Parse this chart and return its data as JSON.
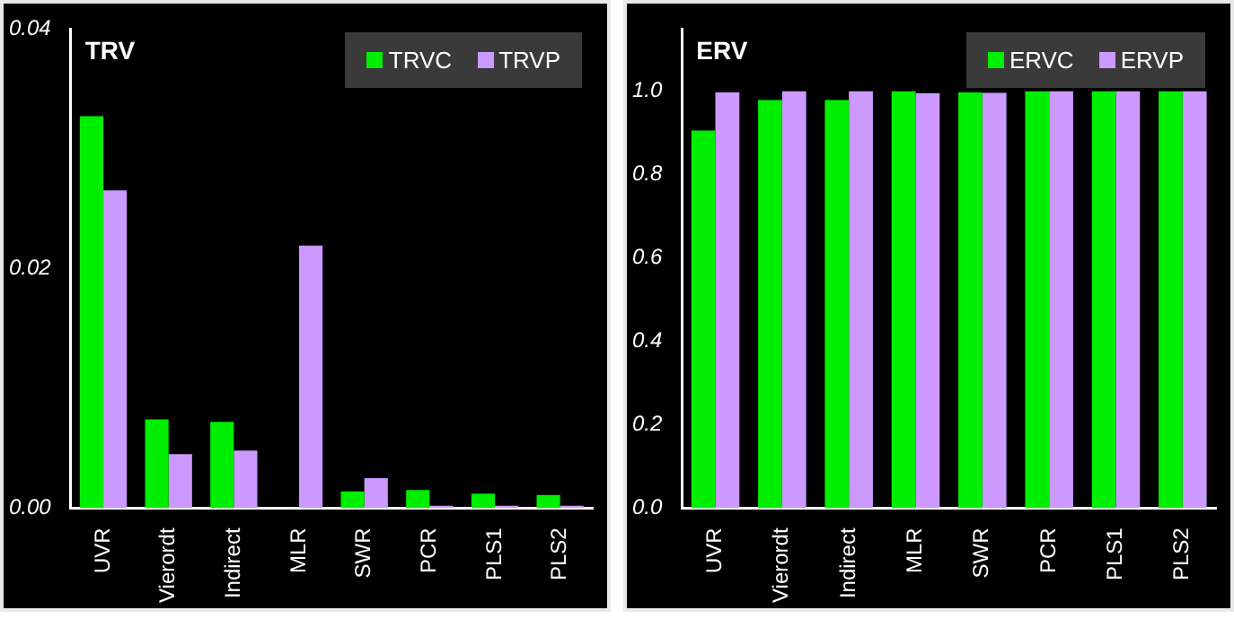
{
  "chart_data": [
    {
      "type": "bar",
      "title": "TRV",
      "categories": [
        "UVR",
        "Vierordt",
        "Indirect",
        "MLR",
        "SWR",
        "PCR",
        "PLS1",
        "PLS2"
      ],
      "series": [
        {
          "name": "TRVC",
          "color": "#00ee00",
          "values": [
            0.0327,
            0.0074,
            0.0072,
            0,
            0.0014,
            0.0015,
            0.0012,
            0.0011
          ]
        },
        {
          "name": "TRVP",
          "color": "#cc99ff",
          "values": [
            0.0265,
            0.0045,
            0.0048,
            0.0219,
            0.0025,
            0.0002,
            0.0002,
            0.0002
          ]
        }
      ],
      "ylim": [
        0,
        0.04
      ],
      "yticks": [
        {
          "value": 0,
          "label": "0.00"
        },
        {
          "value": 0.02,
          "label": "0.02"
        },
        {
          "value": 0.04,
          "label": "0.04"
        }
      ],
      "grid": false,
      "legend": "top right"
    },
    {
      "type": "bar",
      "title": "ERV",
      "categories": [
        "UVR",
        "Vierordt",
        "Indirect",
        "MLR",
        "SWR",
        "PCR",
        "PLS1",
        "PLS2"
      ],
      "series": [
        {
          "name": "ERVC",
          "color": "#00ee00",
          "values": [
            0.906,
            0.979,
            0.979,
            1.0,
            0.997,
            1.0,
            1.0,
            1.0
          ]
        },
        {
          "name": "ERVP",
          "color": "#cc99ff",
          "values": [
            0.997,
            1.0,
            1.0,
            0.995,
            0.996,
            1.0,
            1.0,
            1.0
          ]
        }
      ],
      "ylim": [
        0,
        1.15
      ],
      "yticks": [
        {
          "value": 0,
          "label": "0.0"
        },
        {
          "value": 0.2,
          "label": "0.2"
        },
        {
          "value": 0.4,
          "label": "0.4"
        },
        {
          "value": 0.6,
          "label": "0.6"
        },
        {
          "value": 0.8,
          "label": "0.8"
        },
        {
          "value": 1.0,
          "label": "1.0"
        }
      ],
      "grid": false,
      "legend": "top right"
    }
  ]
}
